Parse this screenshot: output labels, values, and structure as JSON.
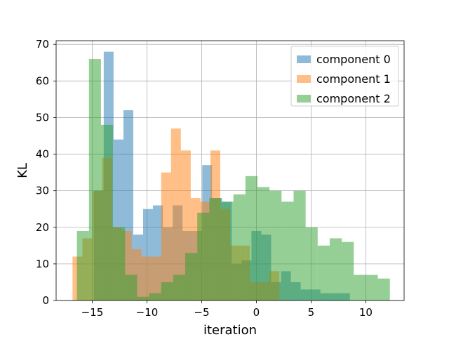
{
  "chart_data": {
    "type": "bar",
    "subtype": "histogram-overlaid",
    "title": "",
    "xlabel": "iteration",
    "ylabel": "KL",
    "xlim": [
      -18.3,
      13.5
    ],
    "ylim": [
      0,
      71
    ],
    "xticks": [
      -15,
      -10,
      -5,
      0,
      5,
      10
    ],
    "xtick_labels": [
      "−15",
      "−10",
      "−5",
      "0",
      "5",
      "10"
    ],
    "yticks": [
      0,
      10,
      20,
      30,
      40,
      50,
      60,
      70
    ],
    "ytick_labels": [
      "0",
      "10",
      "20",
      "30",
      "40",
      "50",
      "60",
      "70"
    ],
    "grid": true,
    "legend_position": "top-right",
    "series": [
      {
        "name": "component 0",
        "color": "#1f77b4",
        "alpha": 0.5,
        "bins": [
          {
            "x0": -14.85,
            "x1": -13.95,
            "count": 30
          },
          {
            "x0": -13.95,
            "x1": -13.05,
            "count": 68
          },
          {
            "x0": -13.05,
            "x1": -12.15,
            "count": 44
          },
          {
            "x0": -12.15,
            "x1": -11.25,
            "count": 52
          },
          {
            "x0": -11.25,
            "x1": -10.35,
            "count": 18
          },
          {
            "x0": -10.35,
            "x1": -9.45,
            "count": 25
          },
          {
            "x0": -9.45,
            "x1": -8.55,
            "count": 26
          },
          {
            "x0": -8.55,
            "x1": -7.65,
            "count": 20
          },
          {
            "x0": -7.65,
            "x1": -6.75,
            "count": 26
          },
          {
            "x0": -6.75,
            "x1": -5.85,
            "count": 19
          },
          {
            "x0": -5.85,
            "x1": -4.95,
            "count": 19
          },
          {
            "x0": -4.95,
            "x1": -4.05,
            "count": 37
          },
          {
            "x0": -4.05,
            "x1": -3.15,
            "count": 28
          },
          {
            "x0": -3.15,
            "x1": -2.25,
            "count": 27
          },
          {
            "x0": -2.25,
            "x1": -1.35,
            "count": 10
          },
          {
            "x0": -1.35,
            "x1": -0.45,
            "count": 11
          },
          {
            "x0": -0.45,
            "x1": 0.45,
            "count": 19
          },
          {
            "x0": 0.45,
            "x1": 1.35,
            "count": 18
          },
          {
            "x0": 1.35,
            "x1": 2.25,
            "count": 5
          },
          {
            "x0": 2.25,
            "x1": 3.15,
            "count": 8
          },
          {
            "x0": 3.15,
            "x1": 4.05,
            "count": 5
          },
          {
            "x0": 4.05,
            "x1": 4.95,
            "count": 3
          },
          {
            "x0": 4.95,
            "x1": 5.85,
            "count": 3
          },
          {
            "x0": 5.85,
            "x1": 6.75,
            "count": 2
          },
          {
            "x0": 6.75,
            "x1": 7.65,
            "count": 2
          },
          {
            "x0": 7.65,
            "x1": 8.55,
            "count": 2
          }
        ]
      },
      {
        "name": "component 1",
        "color": "#ff7f0e",
        "alpha": 0.5,
        "bins": [
          {
            "x0": -16.8,
            "x1": -15.9,
            "count": 12
          },
          {
            "x0": -15.9,
            "x1": -15.0,
            "count": 17
          },
          {
            "x0": -15.0,
            "x1": -14.1,
            "count": 30
          },
          {
            "x0": -14.1,
            "x1": -13.2,
            "count": 39
          },
          {
            "x0": -13.2,
            "x1": -12.3,
            "count": 20
          },
          {
            "x0": -12.3,
            "x1": -11.4,
            "count": 19
          },
          {
            "x0": -11.4,
            "x1": -10.5,
            "count": 14
          },
          {
            "x0": -10.5,
            "x1": -9.6,
            "count": 12
          },
          {
            "x0": -9.6,
            "x1": -8.7,
            "count": 12
          },
          {
            "x0": -8.7,
            "x1": -7.8,
            "count": 35
          },
          {
            "x0": -7.8,
            "x1": -6.9,
            "count": 47
          },
          {
            "x0": -6.9,
            "x1": -6.0,
            "count": 41
          },
          {
            "x0": -6.0,
            "x1": -5.1,
            "count": 28
          },
          {
            "x0": -5.1,
            "x1": -4.2,
            "count": 27
          },
          {
            "x0": -4.2,
            "x1": -3.3,
            "count": 41
          },
          {
            "x0": -3.3,
            "x1": -2.4,
            "count": 25
          },
          {
            "x0": -2.4,
            "x1": -1.5,
            "count": 15
          },
          {
            "x0": -1.5,
            "x1": -0.6,
            "count": 15
          },
          {
            "x0": -0.6,
            "x1": 0.3,
            "count": 5
          },
          {
            "x0": 0.3,
            "x1": 1.2,
            "count": 5
          },
          {
            "x0": 1.2,
            "x1": 2.1,
            "count": 8
          }
        ]
      },
      {
        "name": "component 2",
        "color": "#2ca02c",
        "alpha": 0.5,
        "bins": [
          {
            "x0": -16.4,
            "x1": -15.3,
            "count": 19
          },
          {
            "x0": -15.3,
            "x1": -14.2,
            "count": 66
          },
          {
            "x0": -14.2,
            "x1": -13.1,
            "count": 48
          },
          {
            "x0": -13.1,
            "x1": -12.0,
            "count": 20
          },
          {
            "x0": -12.0,
            "x1": -10.9,
            "count": 7
          },
          {
            "x0": -10.9,
            "x1": -9.8,
            "count": 1
          },
          {
            "x0": -9.8,
            "x1": -8.7,
            "count": 2
          },
          {
            "x0": -8.7,
            "x1": -7.6,
            "count": 5
          },
          {
            "x0": -7.6,
            "x1": -6.5,
            "count": 7
          },
          {
            "x0": -6.5,
            "x1": -5.4,
            "count": 13
          },
          {
            "x0": -5.4,
            "x1": -4.3,
            "count": 24
          },
          {
            "x0": -4.3,
            "x1": -3.2,
            "count": 28
          },
          {
            "x0": -3.2,
            "x1": -2.1,
            "count": 27
          },
          {
            "x0": -2.1,
            "x1": -1.0,
            "count": 29
          },
          {
            "x0": -1.0,
            "x1": 0.1,
            "count": 34
          },
          {
            "x0": 0.1,
            "x1": 1.2,
            "count": 31
          },
          {
            "x0": 1.2,
            "x1": 2.3,
            "count": 30
          },
          {
            "x0": 2.3,
            "x1": 3.4,
            "count": 27
          },
          {
            "x0": 3.4,
            "x1": 4.5,
            "count": 30
          },
          {
            "x0": 4.5,
            "x1": 5.6,
            "count": 20
          },
          {
            "x0": 5.6,
            "x1": 6.7,
            "count": 15
          },
          {
            "x0": 6.7,
            "x1": 7.8,
            "count": 17
          },
          {
            "x0": 7.8,
            "x1": 8.9,
            "count": 16
          },
          {
            "x0": 8.9,
            "x1": 10.0,
            "count": 7
          },
          {
            "x0": 10.0,
            "x1": 11.1,
            "count": 7
          },
          {
            "x0": 11.1,
            "x1": 12.2,
            "count": 6
          }
        ]
      }
    ]
  }
}
